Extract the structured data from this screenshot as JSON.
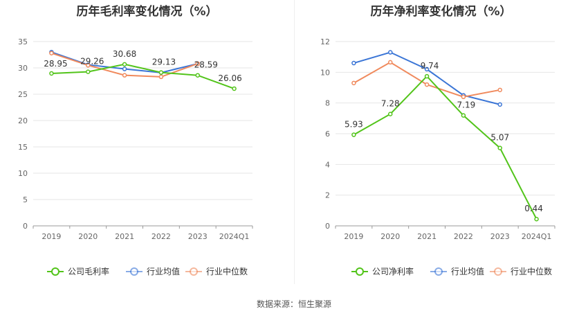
{
  "source_label": "数据来源：恒生聚源",
  "chart_data": [
    {
      "type": "line",
      "title": "历年毛利率变化情况（%）",
      "categories": [
        "2019",
        "2020",
        "2021",
        "2022",
        "2023",
        "2024Q1"
      ],
      "ylim": [
        0,
        35
      ],
      "yticks": [
        0,
        5,
        10,
        15,
        20,
        25,
        30,
        35
      ],
      "grid": true,
      "legend_position": "bottom",
      "series": [
        {
          "name": "公司毛利率",
          "color": "#52c41a",
          "values": [
            28.95,
            29.26,
            30.68,
            29.13,
            28.59,
            26.06
          ],
          "labels": [
            "28.95",
            "29.26",
            "30.68",
            "29.13",
            "28.59",
            "26.06"
          ]
        },
        {
          "name": "行业均值",
          "color": "#3a75d6",
          "values": [
            33.0,
            30.6,
            29.8,
            29.1,
            30.8,
            null
          ]
        },
        {
          "name": "行业中位数",
          "color": "#f08a5d",
          "values": [
            32.8,
            30.5,
            28.6,
            28.3,
            30.8,
            null
          ]
        }
      ]
    },
    {
      "type": "line",
      "title": "历年净利率变化情况（%）",
      "categories": [
        "2019",
        "2020",
        "2021",
        "2022",
        "2023",
        "2024Q1"
      ],
      "ylim": [
        0,
        12
      ],
      "yticks": [
        0,
        2,
        4,
        6,
        8,
        10,
        12
      ],
      "grid": true,
      "legend_position": "bottom",
      "series": [
        {
          "name": "公司净利率",
          "color": "#52c41a",
          "values": [
            5.93,
            7.28,
            9.74,
            7.19,
            5.07,
            0.44
          ],
          "labels": [
            "5.93",
            "7.28",
            "9.74",
            "7.19",
            "5.07",
            "0.44"
          ]
        },
        {
          "name": "行业均值",
          "color": "#3a75d6",
          "values": [
            10.6,
            11.3,
            10.2,
            8.5,
            7.9,
            null
          ]
        },
        {
          "name": "行业中位数",
          "color": "#f08a5d",
          "values": [
            9.3,
            10.65,
            9.2,
            8.4,
            8.85,
            null
          ]
        }
      ]
    }
  ]
}
